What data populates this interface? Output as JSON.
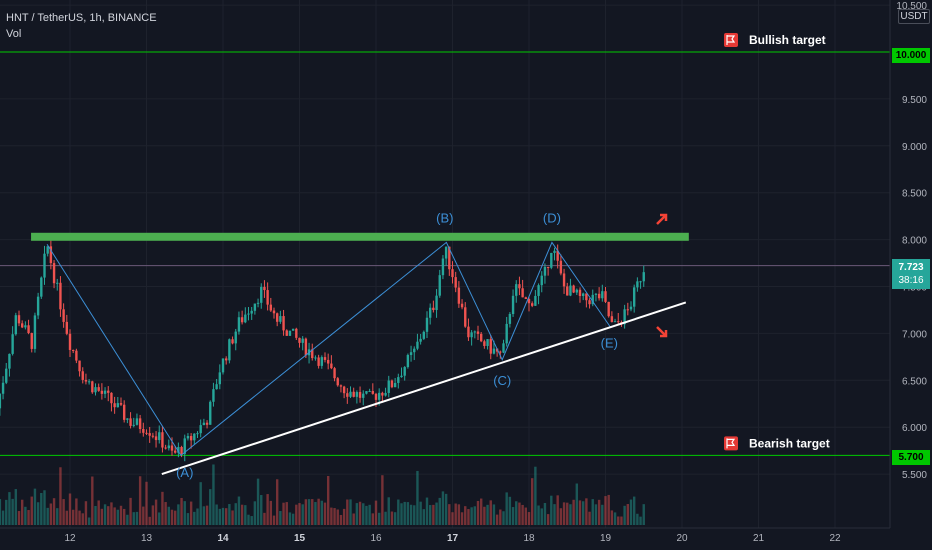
{
  "header": {
    "symbol": "HNT / TetherUS, 1h, BINANCE",
    "vol_label": "Vol"
  },
  "currency_label": "USDT",
  "price_tags": {
    "bullish_level": "10.000",
    "bearish_level": "5.700",
    "current_price": "7.723",
    "countdown": "38:16"
  },
  "targets": {
    "bullish": "Bullish target",
    "bearish": "Bearish target"
  },
  "wave_labels": [
    "(A)",
    "(B)",
    "(C)",
    "(D)",
    "(E)"
  ],
  "colors": {
    "background": "#131722",
    "up": "#26a69a",
    "down": "#ef5350",
    "level_line": "#00c800",
    "resistance": "#4caf50",
    "wave": "#3c8fd6",
    "arrow": "#f44336",
    "flag": "#e53935"
  },
  "chart_data": {
    "type": "candlestick",
    "x_ticks": [
      "12",
      "13",
      "14",
      "15",
      "16",
      "17",
      "18",
      "19",
      "20",
      "21",
      "22"
    ],
    "bold_x_ticks": [
      "14",
      "15",
      "17"
    ],
    "y_ticks": [
      "10.500",
      "10.000",
      "9.500",
      "9.000",
      "8.500",
      "8.000",
      "7.500",
      "7.000",
      "6.500",
      "6.000",
      "5.700",
      "5.500"
    ],
    "ylim": [
      5.0,
      10.6
    ],
    "horizontal_levels": [
      10.0,
      5.7
    ],
    "resistance_level": 8.03,
    "current_price": 7.723,
    "price_path_day_price": [
      [
        11.0,
        6.05
      ],
      [
        11.15,
        6.6
      ],
      [
        11.3,
        7.2
      ],
      [
        11.5,
        6.9
      ],
      [
        11.7,
        7.95
      ],
      [
        11.85,
        7.4
      ],
      [
        12.0,
        6.9
      ],
      [
        12.2,
        6.5
      ],
      [
        12.5,
        6.3
      ],
      [
        12.8,
        6.05
      ],
      [
        13.0,
        6.0
      ],
      [
        13.2,
        5.85
      ],
      [
        13.35,
        5.7
      ],
      [
        13.55,
        5.85
      ],
      [
        13.8,
        6.1
      ],
      [
        13.95,
        6.6
      ],
      [
        14.2,
        7.1
      ],
      [
        14.5,
        7.45
      ],
      [
        14.7,
        7.15
      ],
      [
        15.0,
        6.9
      ],
      [
        15.3,
        6.7
      ],
      [
        15.6,
        6.4
      ],
      [
        15.9,
        6.3
      ],
      [
        16.2,
        6.45
      ],
      [
        16.5,
        6.8
      ],
      [
        16.75,
        7.3
      ],
      [
        16.9,
        7.9
      ],
      [
        17.05,
        7.5
      ],
      [
        17.2,
        7.0
      ],
      [
        17.4,
        6.9
      ],
      [
        17.65,
        6.75
      ],
      [
        17.8,
        7.5
      ],
      [
        18.0,
        7.3
      ],
      [
        18.2,
        7.6
      ],
      [
        18.3,
        7.95
      ],
      [
        18.45,
        7.5
      ],
      [
        18.7,
        7.35
      ],
      [
        18.95,
        7.4
      ],
      [
        19.1,
        7.05
      ],
      [
        19.3,
        7.25
      ],
      [
        19.5,
        7.7
      ]
    ],
    "wave_points_day_price": {
      "start": [
        11.7,
        7.95
      ],
      "A": [
        13.45,
        5.7
      ],
      "B": [
        16.92,
        7.97
      ],
      "C": [
        17.65,
        6.72
      ],
      "D": [
        18.3,
        7.97
      ],
      "E": [
        19.07,
        7.06
      ]
    },
    "support_line_day_price": [
      [
        13.2,
        5.5
      ],
      [
        20.05,
        7.33
      ]
    ],
    "resistance_segment_days": [
      11.7,
      20.05
    ]
  }
}
